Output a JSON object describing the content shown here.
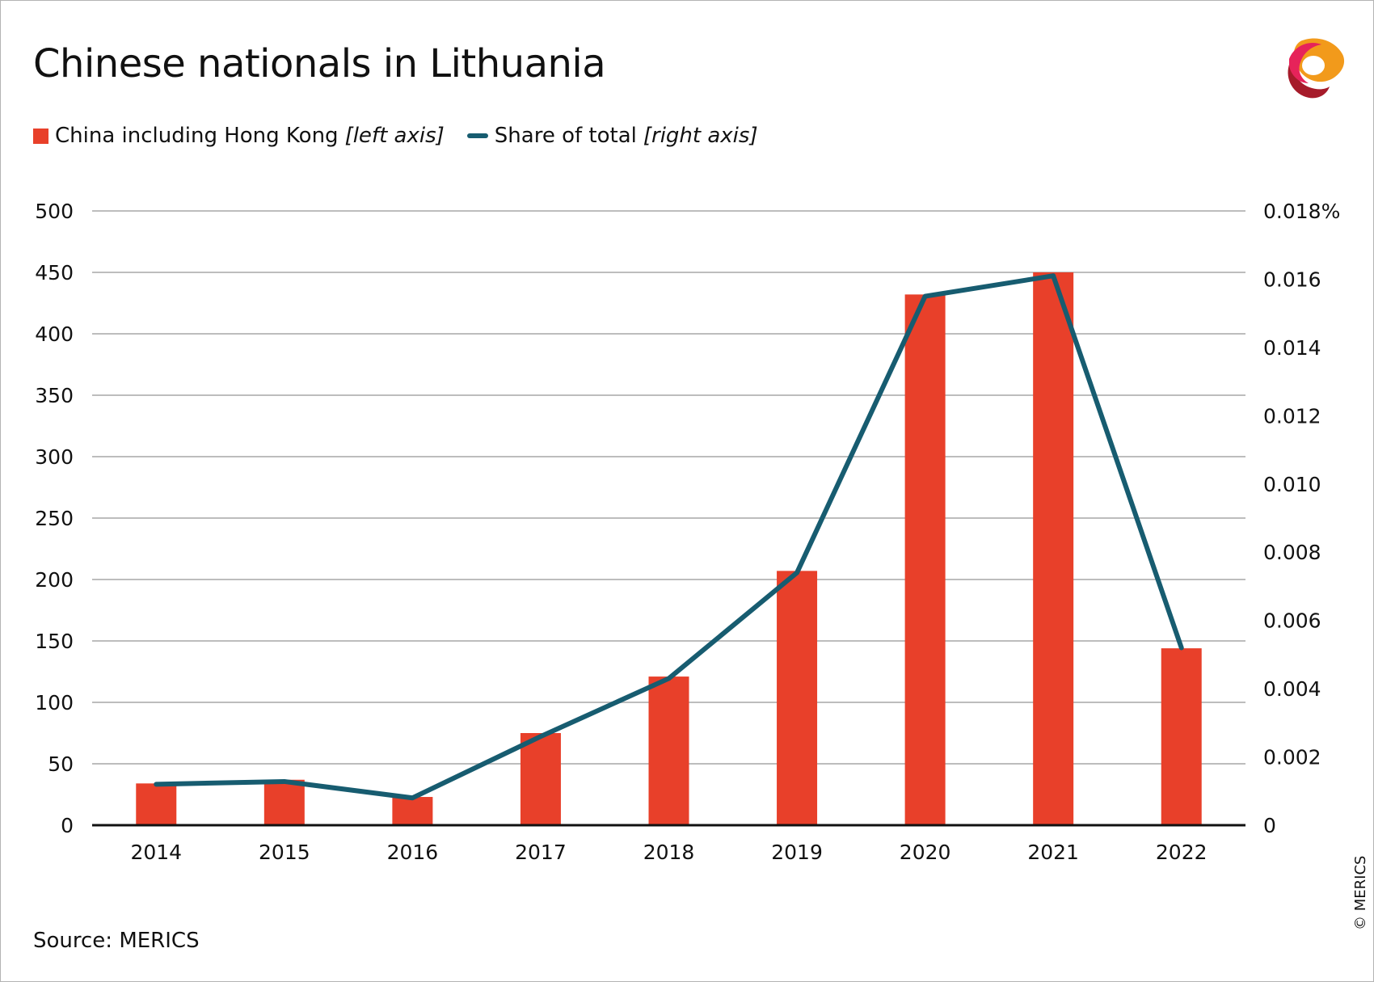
{
  "title": "Chinese nationals in Lithuania",
  "legend": {
    "bar_label": "China including Hong Kong",
    "bar_note": "[left axis]",
    "line_label": "Share of total",
    "line_note": "[right axis]"
  },
  "source": "Source: MERICS",
  "copyright": "© MERICS",
  "colors": {
    "bar": "#e8402a",
    "line": "#175c70",
    "gridline": "#bdbdbd",
    "axis": "#111111"
  },
  "logo_icon": "merics-logo-icon",
  "chart_data": {
    "type": "bar",
    "categories": [
      "2014",
      "2015",
      "2016",
      "2017",
      "2018",
      "2019",
      "2020",
      "2021",
      "2022"
    ],
    "series": [
      {
        "name": "China including Hong Kong",
        "type": "bar",
        "axis": "left",
        "values": [
          34,
          37,
          23,
          75,
          121,
          207,
          432,
          450,
          144
        ]
      },
      {
        "name": "Share of total",
        "type": "line",
        "axis": "right",
        "values": [
          0.0012,
          0.00128,
          0.0008,
          0.0026,
          0.0043,
          0.0074,
          0.0155,
          0.0161,
          0.0052
        ]
      }
    ],
    "left_axis": {
      "ylim": [
        0,
        500
      ],
      "ticks": [
        "0",
        "50",
        "100",
        "150",
        "200",
        "250",
        "300",
        "350",
        "400",
        "450",
        "500"
      ]
    },
    "right_axis": {
      "ylim": [
        0,
        0.018
      ],
      "ticks": [
        "0",
        "0.002",
        "0.004",
        "0.006",
        "0.008",
        "0.010",
        "0.012",
        "0.014",
        "0.016",
        "0.018%"
      ]
    },
    "grid": true,
    "legend_position": "top-left"
  }
}
